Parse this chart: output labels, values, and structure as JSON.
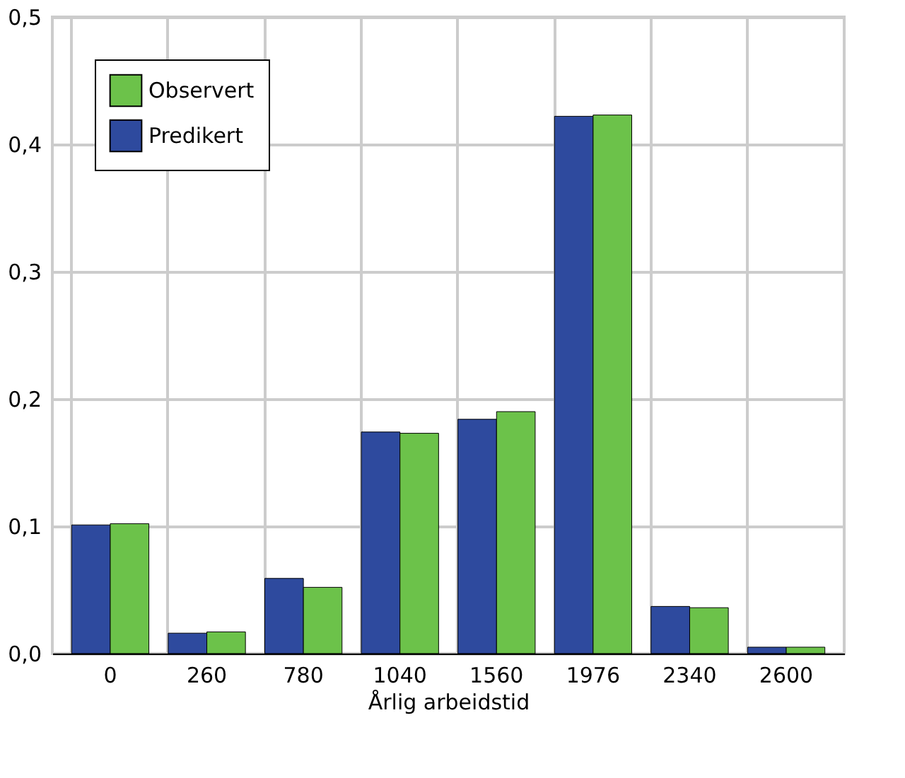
{
  "chart_data": {
    "type": "bar",
    "xlabel": "Årlig arbeidstid",
    "categories": [
      "0",
      "260",
      "780",
      "1040",
      "1560",
      "1976",
      "2340",
      "2600"
    ],
    "series": [
      {
        "name": "Predikert",
        "color": "#2e4a9e",
        "values": [
          0.101,
          0.016,
          0.059,
          0.174,
          0.184,
          0.422,
          0.037,
          0.005
        ]
      },
      {
        "name": "Observert",
        "color": "#6cc24a",
        "values": [
          0.102,
          0.017,
          0.052,
          0.173,
          0.19,
          0.423,
          0.036,
          0.005
        ]
      }
    ],
    "ylim": [
      0,
      0.5
    ],
    "yticks": [
      {
        "value": 0,
        "label": "0,0"
      },
      {
        "value": 0.1,
        "label": "0,1"
      },
      {
        "value": 0.2,
        "label": "0,2"
      },
      {
        "value": 0.3,
        "label": "0,3"
      },
      {
        "value": 0.4,
        "label": "0,4"
      },
      {
        "value": 0.5,
        "label": "0,5"
      }
    ],
    "grid": true,
    "legend": "top left"
  }
}
